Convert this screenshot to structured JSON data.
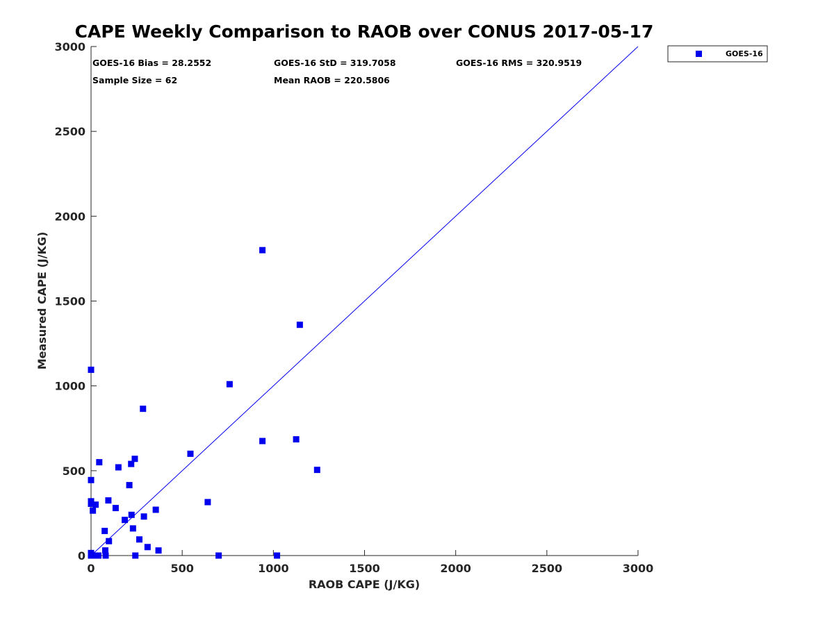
{
  "chart_data": {
    "type": "scatter",
    "title": "CAPE Weekly Comparison to RAOB over CONUS 2017-05-17",
    "xlabel": "RAOB CAPE (J/KG)",
    "ylabel": "Measured CAPE (J/KG)",
    "xlim": [
      0,
      3000
    ],
    "ylim": [
      0,
      3000
    ],
    "xticks": [
      0,
      500,
      1000,
      1500,
      2000,
      2500,
      3000
    ],
    "yticks": [
      0,
      500,
      1000,
      1500,
      2000,
      2500,
      3000
    ],
    "grid": false,
    "legend": {
      "position": "outside-top-right",
      "entries": [
        "GOES-16"
      ]
    },
    "reference_line": {
      "name": "one-to-one",
      "x": [
        0,
        3000
      ],
      "y": [
        0,
        3000
      ]
    },
    "annotations": [
      "GOES-16 Bias = 28.2552",
      "GOES-16 StD = 319.7058",
      "GOES-16 RMS = 320.9519",
      "Sample Size = 62",
      "Mean RAOB = 220.5806"
    ],
    "series": [
      {
        "name": "GOES-16",
        "color": "#0000ee",
        "marker": "square",
        "points": [
          [
            0,
            1095
          ],
          [
            0,
            445
          ],
          [
            0,
            320
          ],
          [
            0,
            305
          ],
          [
            0,
            15
          ],
          [
            0,
            0
          ],
          [
            10,
            265
          ],
          [
            20,
            0
          ],
          [
            25,
            300
          ],
          [
            40,
            0
          ],
          [
            45,
            550
          ],
          [
            75,
            145
          ],
          [
            78,
            30
          ],
          [
            80,
            0
          ],
          [
            95,
            325
          ],
          [
            98,
            85
          ],
          [
            135,
            280
          ],
          [
            150,
            520
          ],
          [
            185,
            210
          ],
          [
            210,
            415
          ],
          [
            220,
            540
          ],
          [
            222,
            240
          ],
          [
            230,
            160
          ],
          [
            240,
            570
          ],
          [
            243,
            0
          ],
          [
            265,
            95
          ],
          [
            285,
            865
          ],
          [
            290,
            230
          ],
          [
            310,
            50
          ],
          [
            355,
            270
          ],
          [
            370,
            30
          ],
          [
            545,
            600
          ],
          [
            640,
            315
          ],
          [
            700,
            0
          ],
          [
            760,
            1010
          ],
          [
            940,
            1800
          ],
          [
            940,
            675
          ],
          [
            1020,
            0
          ],
          [
            1125,
            685
          ],
          [
            1145,
            1360
          ],
          [
            1240,
            505
          ]
        ]
      }
    ]
  },
  "colors": {
    "series": "#0000ee",
    "axis": "#262626",
    "background": "#ffffff"
  }
}
